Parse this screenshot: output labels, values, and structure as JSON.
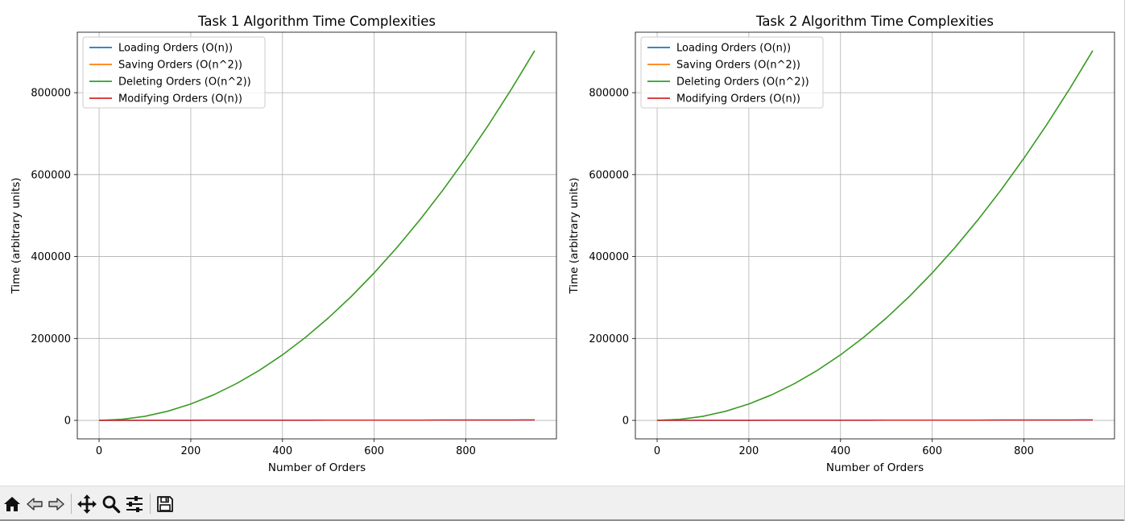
{
  "chart_data": [
    {
      "type": "line",
      "title": "Task 1 Algorithm Time Complexities",
      "xlabel": "Number of Orders",
      "ylabel": "Time (arbitrary units)",
      "xlim": [
        -47.5,
        997.5
      ],
      "ylim": [
        -45125,
        947625
      ],
      "xticks": [
        0,
        200,
        400,
        600,
        800
      ],
      "yticks": [
        0,
        200000,
        400000,
        600000,
        800000
      ],
      "grid": true,
      "legend_position": "upper-left",
      "x": [
        0,
        50,
        100,
        150,
        200,
        250,
        300,
        350,
        400,
        450,
        500,
        550,
        600,
        650,
        700,
        750,
        800,
        850,
        900,
        950
      ],
      "series": [
        {
          "name": "Loading Orders (O(n))",
          "color": "#1f77b4",
          "values": [
            0,
            50,
            100,
            150,
            200,
            250,
            300,
            350,
            400,
            450,
            500,
            550,
            600,
            650,
            700,
            750,
            800,
            850,
            900,
            950
          ]
        },
        {
          "name": "Saving Orders (O(n^2))",
          "color": "#ff7f0e",
          "values": [
            0,
            2500,
            10000,
            22500,
            40000,
            62500,
            90000,
            122500,
            160000,
            202500,
            250000,
            302500,
            360000,
            422500,
            490000,
            562500,
            640000,
            722500,
            810000,
            902500
          ]
        },
        {
          "name": "Deleting Orders (O(n^2))",
          "color": "#2ca02c",
          "values": [
            0,
            2500,
            10000,
            22500,
            40000,
            62500,
            90000,
            122500,
            160000,
            202500,
            250000,
            302500,
            360000,
            422500,
            490000,
            562500,
            640000,
            722500,
            810000,
            902500
          ]
        },
        {
          "name": "Modifying Orders (O(n))",
          "color": "#d62728",
          "values": [
            0,
            50,
            100,
            150,
            200,
            250,
            300,
            350,
            400,
            450,
            500,
            550,
            600,
            650,
            700,
            750,
            800,
            850,
            900,
            950
          ]
        }
      ]
    },
    {
      "type": "line",
      "title": "Task 2 Algorithm Time Complexities",
      "xlabel": "Number of Orders",
      "ylabel": "Time (arbitrary units)",
      "xlim": [
        -47.5,
        997.5
      ],
      "ylim": [
        -45125,
        947625
      ],
      "xticks": [
        0,
        200,
        400,
        600,
        800
      ],
      "yticks": [
        0,
        200000,
        400000,
        600000,
        800000
      ],
      "grid": true,
      "legend_position": "upper-left",
      "x": [
        0,
        50,
        100,
        150,
        200,
        250,
        300,
        350,
        400,
        450,
        500,
        550,
        600,
        650,
        700,
        750,
        800,
        850,
        900,
        950
      ],
      "series": [
        {
          "name": "Loading Orders (O(n))",
          "color": "#1f77b4",
          "values": [
            0,
            50,
            100,
            150,
            200,
            250,
            300,
            350,
            400,
            450,
            500,
            550,
            600,
            650,
            700,
            750,
            800,
            850,
            900,
            950
          ]
        },
        {
          "name": "Saving Orders (O(n^2))",
          "color": "#ff7f0e",
          "values": [
            0,
            2500,
            10000,
            22500,
            40000,
            62500,
            90000,
            122500,
            160000,
            202500,
            250000,
            302500,
            360000,
            422500,
            490000,
            562500,
            640000,
            722500,
            810000,
            902500
          ]
        },
        {
          "name": "Deleting Orders (O(n^2))",
          "color": "#2ca02c",
          "values": [
            0,
            2500,
            10000,
            22500,
            40000,
            62500,
            90000,
            122500,
            160000,
            202500,
            250000,
            302500,
            360000,
            422500,
            490000,
            562500,
            640000,
            722500,
            810000,
            902500
          ]
        },
        {
          "name": "Modifying Orders (O(n))",
          "color": "#d62728",
          "values": [
            0,
            50,
            100,
            150,
            200,
            250,
            300,
            350,
            400,
            450,
            500,
            550,
            600,
            650,
            700,
            750,
            800,
            850,
            900,
            950
          ]
        }
      ]
    }
  ],
  "toolbar": {
    "buttons": [
      {
        "icon": "home-icon"
      },
      {
        "icon": "back-arrow-icon"
      },
      {
        "icon": "forward-arrow-icon"
      },
      {
        "icon": "pan-move-icon"
      },
      {
        "icon": "zoom-magnifier-icon"
      },
      {
        "icon": "configure-subplots-icon"
      },
      {
        "icon": "save-disk-icon"
      }
    ]
  }
}
